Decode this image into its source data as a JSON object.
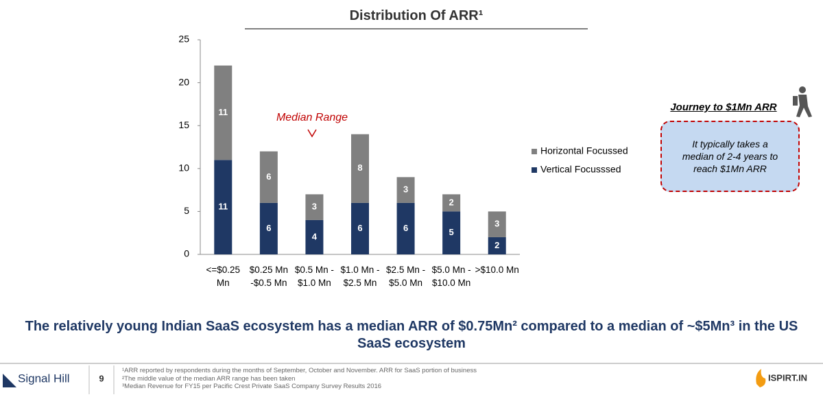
{
  "chart_data": {
    "type": "stacked_bar",
    "title": "Distribution Of ARR¹",
    "categories": [
      "<=$0.25 Mn",
      "$0.25 Mn -$0.5 Mn",
      "$0.5 Mn - $1.0 Mn",
      "$1.0 Mn - $2.5 Mn",
      "$2.5 Mn - $5.0 Mn",
      "$5.0 Mn - $10.0 Mn",
      ">$10.0 Mn"
    ],
    "series": [
      {
        "name": "Vertical Focusssed",
        "color": "#1f3864",
        "values": [
          11,
          6,
          4,
          6,
          6,
          5,
          2
        ]
      },
      {
        "name": "Horizontal Focussed",
        "color": "#808080",
        "values": [
          11,
          6,
          3,
          8,
          3,
          2,
          3
        ]
      }
    ],
    "ylim": [
      0,
      25
    ],
    "yticks": [
      0,
      5,
      10,
      15,
      20,
      25
    ],
    "grid": false,
    "legend": "right",
    "annotation": "Median Range"
  },
  "callout": {
    "heading": "Journey to $1Mn ARR",
    "text": "It typically takes a median of  2-4 years to reach $1Mn ARR"
  },
  "headline": "The relatively young Indian SaaS ecosystem has a median ARR of $0.75Mn² compared to a median of ~$5Mn³ in the US SaaS ecosystem",
  "footer": {
    "brand": "Signal Hill",
    "page": "9",
    "notes": [
      "¹ARR reported by respondents during the months of September, October and November. ARR for SaaS portion of business",
      "²The middle value of the median ARR range has been taken",
      "³Median Revenue for FY15 per Pacific Crest Private SaaS Company Survey Results 2016"
    ],
    "partner": "ISPIRT.IN"
  }
}
